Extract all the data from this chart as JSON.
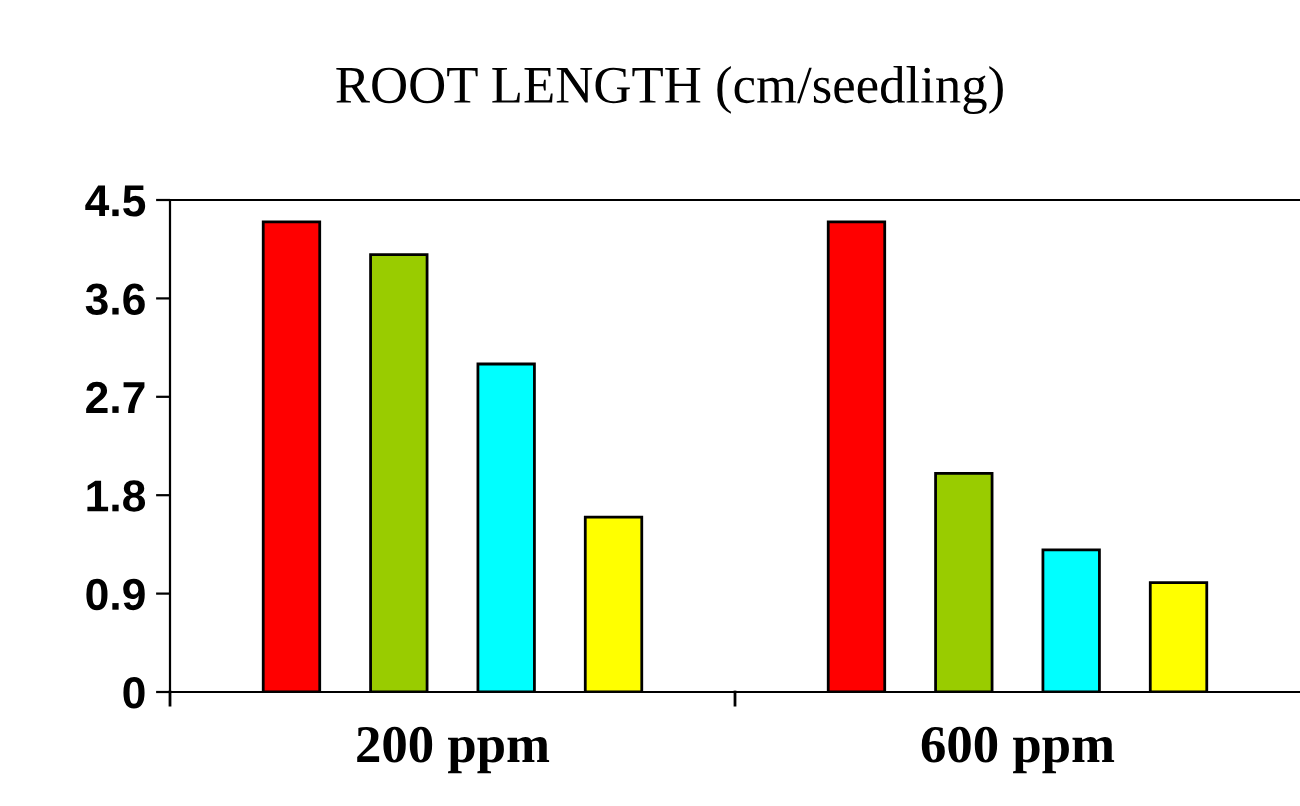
{
  "chart_data": {
    "type": "bar",
    "title": "ROOT LENGTH (cm/seedling)",
    "categories": [
      "200 ppm",
      "600 ppm"
    ],
    "series": [
      {
        "color": "#ff0000",
        "values": [
          4.3,
          4.3
        ]
      },
      {
        "color": "#99cc00",
        "values": [
          4.0,
          2.0
        ]
      },
      {
        "color": "#00ffff",
        "values": [
          3.0,
          1.3
        ]
      },
      {
        "color": "#ffff00",
        "values": [
          1.6,
          1.0
        ]
      }
    ],
    "ylim": [
      0,
      4.5
    ],
    "yticks": [
      0,
      0.9,
      1.8,
      2.7,
      3.6,
      4.5
    ],
    "grid": false,
    "legend": false
  }
}
